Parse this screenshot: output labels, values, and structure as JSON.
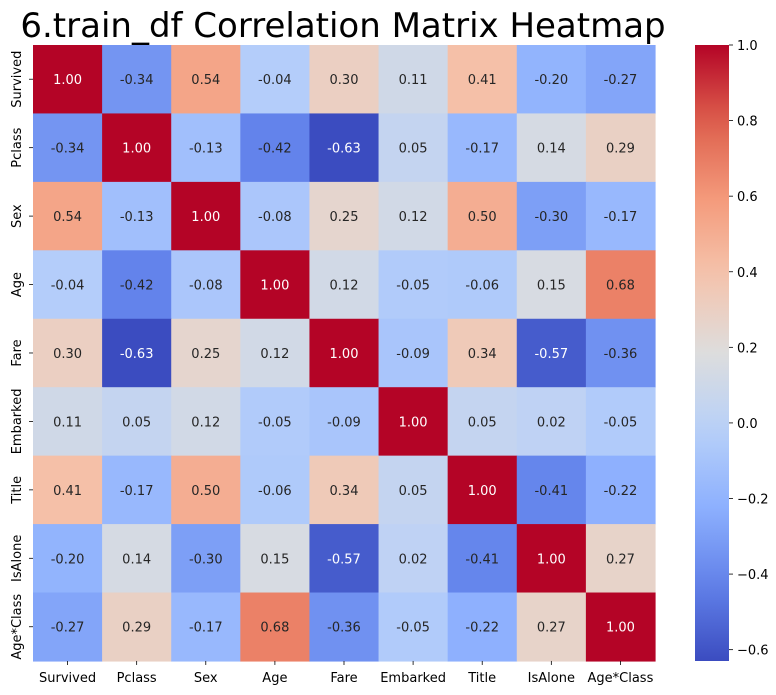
{
  "chart_data": {
    "type": "heatmap",
    "title": "6.train_df Correlation Matrix Heatmap",
    "xlabel": "",
    "ylabel": "",
    "x_categories": [
      "Survived",
      "Pclass",
      "Sex",
      "Age",
      "Fare",
      "Embarked",
      "Title",
      "IsAlone",
      "Age*Class"
    ],
    "y_categories": [
      "Survived",
      "Pclass",
      "Sex",
      "Age",
      "Fare",
      "Embarked",
      "Title",
      "IsAlone",
      "Age*Class"
    ],
    "values": [
      [
        1.0,
        -0.34,
        0.54,
        -0.04,
        0.3,
        0.11,
        0.41,
        -0.2,
        -0.27
      ],
      [
        -0.34,
        1.0,
        -0.13,
        -0.42,
        -0.63,
        0.05,
        -0.17,
        0.14,
        0.29
      ],
      [
        0.54,
        -0.13,
        1.0,
        -0.08,
        0.25,
        0.12,
        0.5,
        -0.3,
        -0.17
      ],
      [
        -0.04,
        -0.42,
        -0.08,
        1.0,
        0.12,
        -0.05,
        -0.06,
        0.15,
        0.68
      ],
      [
        0.3,
        -0.63,
        0.25,
        0.12,
        1.0,
        -0.09,
        0.34,
        -0.57,
        -0.36
      ],
      [
        0.11,
        0.05,
        0.12,
        -0.05,
        -0.09,
        1.0,
        0.05,
        0.02,
        -0.05
      ],
      [
        0.41,
        -0.17,
        0.5,
        -0.06,
        0.34,
        0.05,
        1.0,
        -0.41,
        -0.22
      ],
      [
        -0.2,
        0.14,
        -0.3,
        0.15,
        -0.57,
        0.02,
        -0.41,
        1.0,
        0.27
      ],
      [
        -0.27,
        0.29,
        -0.17,
        0.68,
        -0.36,
        -0.05,
        -0.22,
        0.27,
        1.0
      ]
    ],
    "colormap": "coolwarm",
    "vmin": -0.63,
    "vmax": 1.0,
    "colorbar": {
      "ticks": [
        -0.6,
        -0.4,
        -0.2,
        0.0,
        0.2,
        0.4,
        0.6,
        0.8,
        1.0
      ],
      "tick_labels": [
        "−0.6",
        "−0.4",
        "−0.2",
        "0.0",
        "0.2",
        "0.4",
        "0.6",
        "0.8",
        "1.0"
      ],
      "placement": "right"
    },
    "annotations": "values shown in each cell with 2 decimals",
    "grid": false
  }
}
